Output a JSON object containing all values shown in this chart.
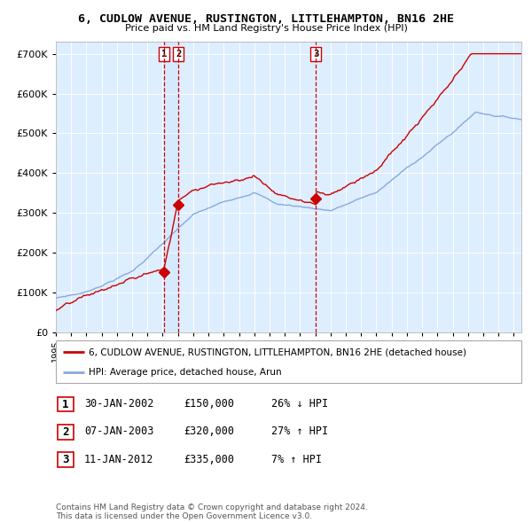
{
  "title": "6, CUDLOW AVENUE, RUSTINGTON, LITTLEHAMPTON, BN16 2HE",
  "subtitle": "Price paid vs. HM Land Registry's House Price Index (HPI)",
  "legend_house": "6, CUDLOW AVENUE, RUSTINGTON, LITTLEHAMPTON, BN16 2HE (detached house)",
  "legend_hpi": "HPI: Average price, detached house, Arun",
  "house_color": "#cc0000",
  "hpi_color": "#88aadd",
  "background_color": "#ddeeff",
  "transactions": [
    {
      "label": "1",
      "date": "30-JAN-2002",
      "price": 150000,
      "hpi_pct": "26% ↓ HPI",
      "x_year": 2002.08
    },
    {
      "label": "2",
      "date": "07-JAN-2003",
      "price": 320000,
      "hpi_pct": "27% ↑ HPI",
      "x_year": 2003.03
    },
    {
      "label": "3",
      "date": "11-JAN-2012",
      "price": 335000,
      "hpi_pct": "7% ↑ HPI",
      "x_year": 2012.03
    }
  ],
  "ylim": [
    0,
    730000
  ],
  "yticks": [
    0,
    100000,
    200000,
    300000,
    400000,
    500000,
    600000,
    700000
  ],
  "ytick_labels": [
    "£0",
    "£100K",
    "£200K",
    "£300K",
    "£400K",
    "£500K",
    "£600K",
    "£700K"
  ],
  "xlim_start": 1995.0,
  "xlim_end": 2025.5,
  "footer": "Contains HM Land Registry data © Crown copyright and database right 2024.\nThis data is licensed under the Open Government Licence v3.0."
}
